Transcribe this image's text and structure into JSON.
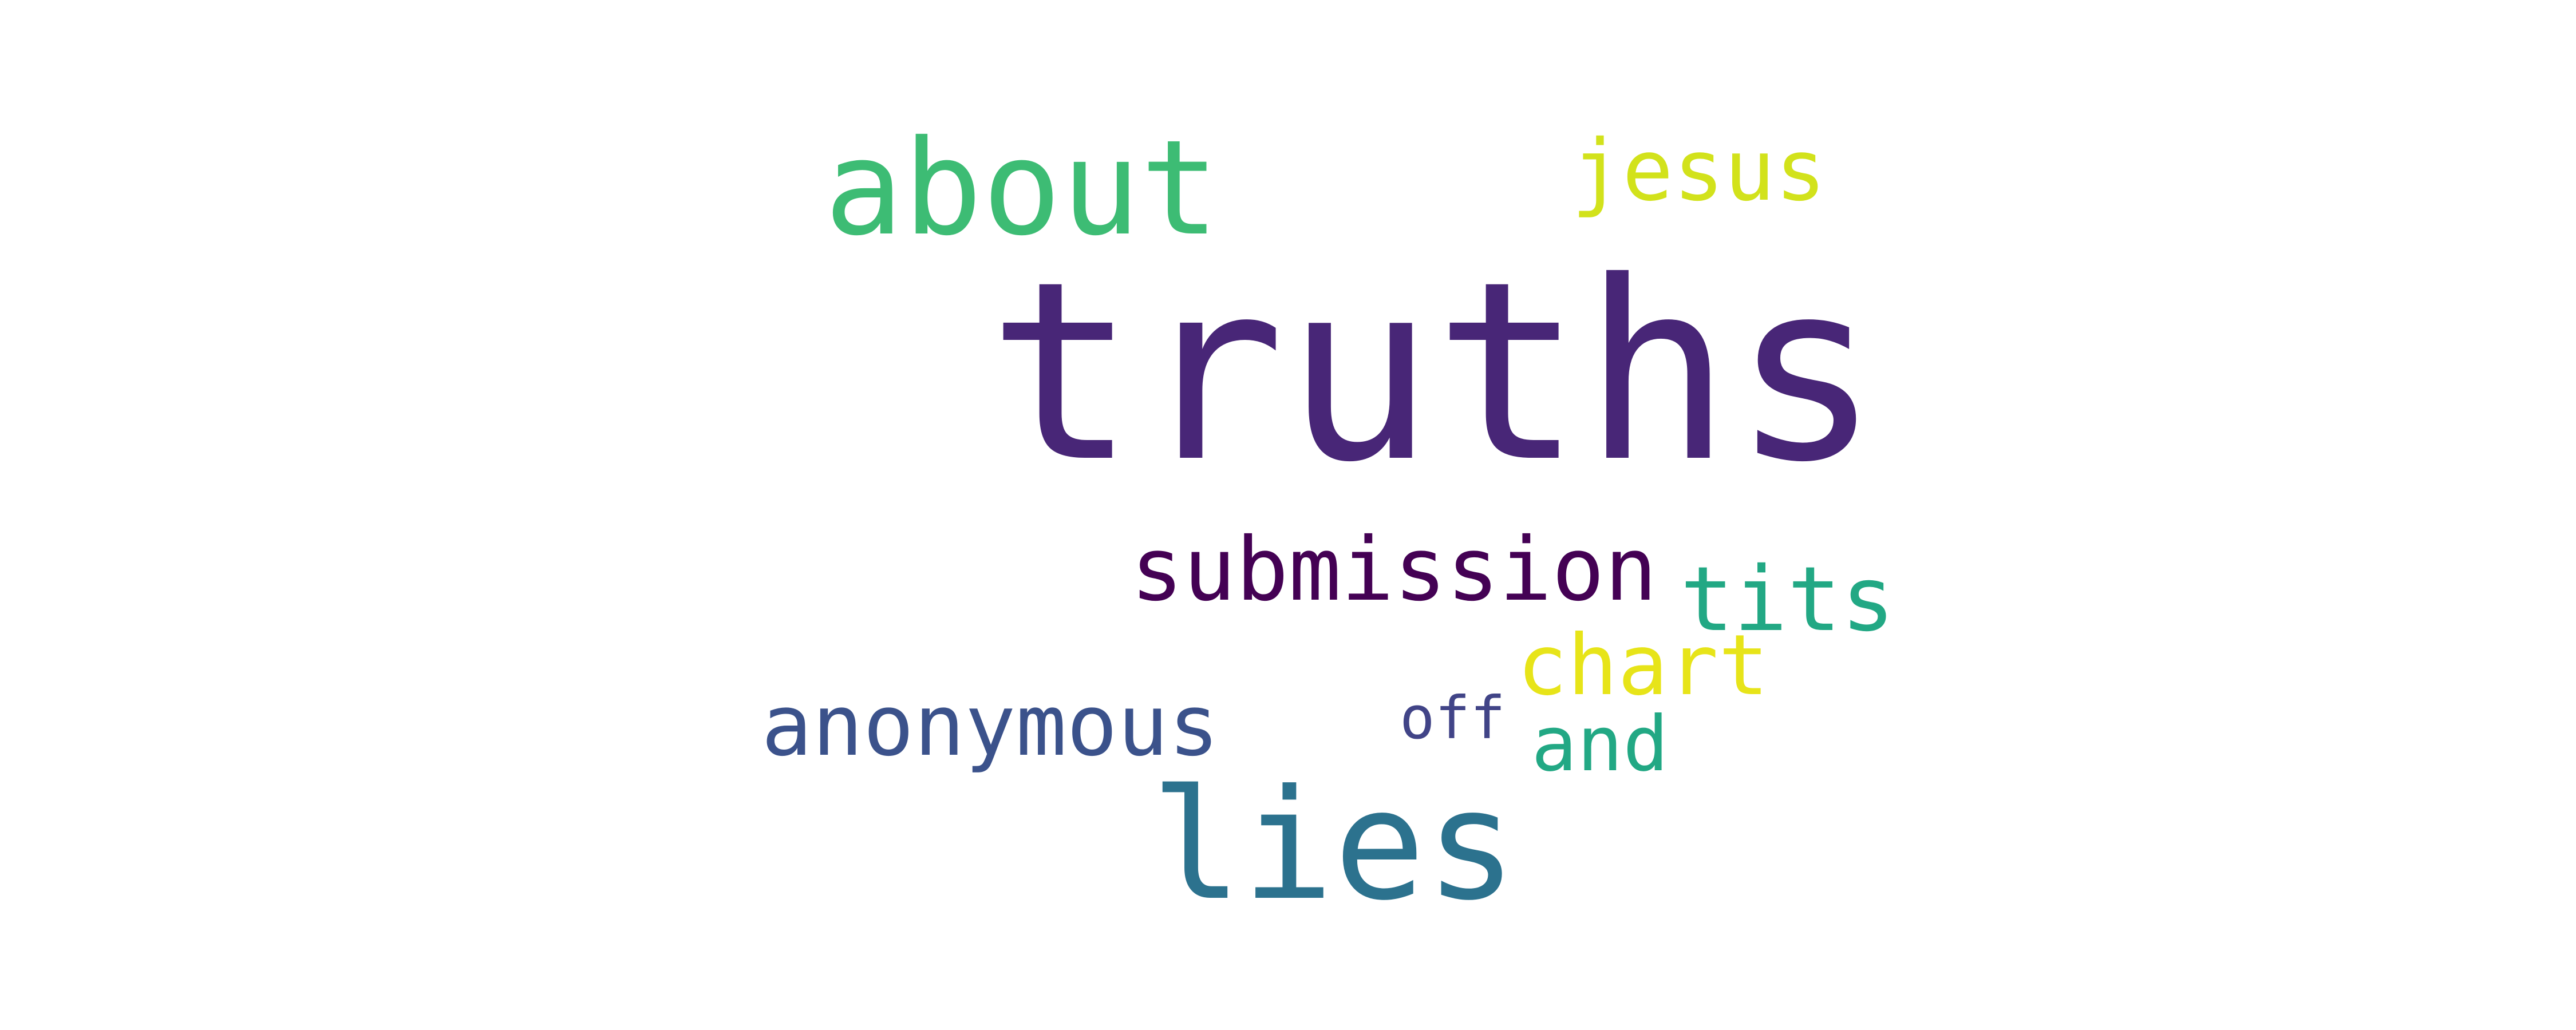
{
  "words": [
    {
      "key": "truths",
      "text": "truths",
      "color": "#482677"
    },
    {
      "key": "about",
      "text": "about",
      "color": "#3dbc74"
    },
    {
      "key": "jesus",
      "text": "jesus",
      "color": "#d2e21b"
    },
    {
      "key": "submission",
      "text": "submission",
      "color": "#440154"
    },
    {
      "key": "tits",
      "text": "tits",
      "color": "#22a884"
    },
    {
      "key": "chart",
      "text": "chart",
      "color": "#e7e419"
    },
    {
      "key": "anonymous",
      "text": "anonymous",
      "color": "#3b528b"
    },
    {
      "key": "off",
      "text": "off",
      "color": "#414487"
    },
    {
      "key": "and",
      "text": "and",
      "color": "#22a884"
    },
    {
      "key": "lies",
      "text": "lies",
      "color": "#2c728e"
    }
  ]
}
